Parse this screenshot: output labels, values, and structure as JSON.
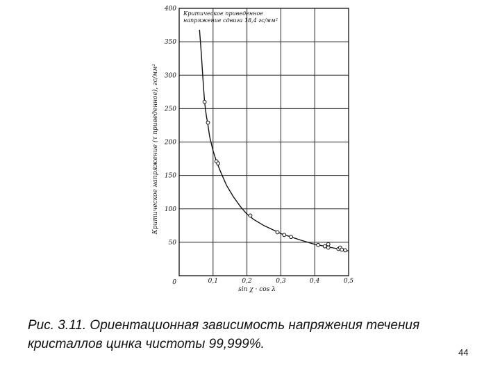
{
  "caption": {
    "line1": "Рис. 3.11. Ориентационная зависимость напряжения течения",
    "line2": "кристаллов цинка чистоты 99,999%."
  },
  "page_number": "44",
  "chart_data": {
    "type": "scatter",
    "title": "",
    "xlabel": "sin χ · cos λ",
    "ylabel": "Критическое напряжение (τ приведенное), гс/мм²",
    "annotation": [
      "Критическое приведенное",
      "напряжение сдвига 18,4 гс/мм²"
    ],
    "xlim": [
      0,
      0.5
    ],
    "ylim": [
      0,
      400
    ],
    "x_ticks": [
      0.1,
      0.2,
      0.3,
      0.4,
      0.5
    ],
    "x_tick_labels": [
      "0,1",
      "0,2",
      "0,3",
      "0,4",
      "0,5"
    ],
    "y_ticks": [
      0,
      50,
      100,
      150,
      200,
      250,
      300,
      350,
      400
    ],
    "y_tick_labels": [
      "0",
      "50",
      "100",
      "150",
      "200",
      "250",
      "300",
      "350",
      "400"
    ],
    "grid": true,
    "points": [
      {
        "x": 0.075,
        "y": 260
      },
      {
        "x": 0.085,
        "y": 229
      },
      {
        "x": 0.11,
        "y": 171
      },
      {
        "x": 0.115,
        "y": 168
      },
      {
        "x": 0.21,
        "y": 90
      },
      {
        "x": 0.29,
        "y": 65
      },
      {
        "x": 0.31,
        "y": 61
      },
      {
        "x": 0.33,
        "y": 58
      },
      {
        "x": 0.41,
        "y": 46
      },
      {
        "x": 0.43,
        "y": 44
      },
      {
        "x": 0.44,
        "y": 47
      },
      {
        "x": 0.44,
        "y": 42
      },
      {
        "x": 0.47,
        "y": 40
      },
      {
        "x": 0.475,
        "y": 42
      },
      {
        "x": 0.48,
        "y": 39
      },
      {
        "x": 0.49,
        "y": 38
      }
    ],
    "curve": {
      "x": [
        0.06,
        0.065,
        0.07,
        0.075,
        0.08,
        0.085,
        0.09,
        0.1,
        0.11,
        0.12,
        0.14,
        0.16,
        0.18,
        0.2,
        0.22,
        0.25,
        0.28,
        0.3,
        0.33,
        0.36,
        0.4,
        0.43,
        0.46,
        0.49,
        0.5
      ],
      "y": [
        368,
        335,
        295,
        260,
        240,
        225,
        208,
        187,
        171,
        158,
        135,
        118,
        104,
        92,
        84,
        75,
        68,
        63,
        58,
        53,
        47,
        44,
        41,
        38,
        37
      ]
    }
  }
}
